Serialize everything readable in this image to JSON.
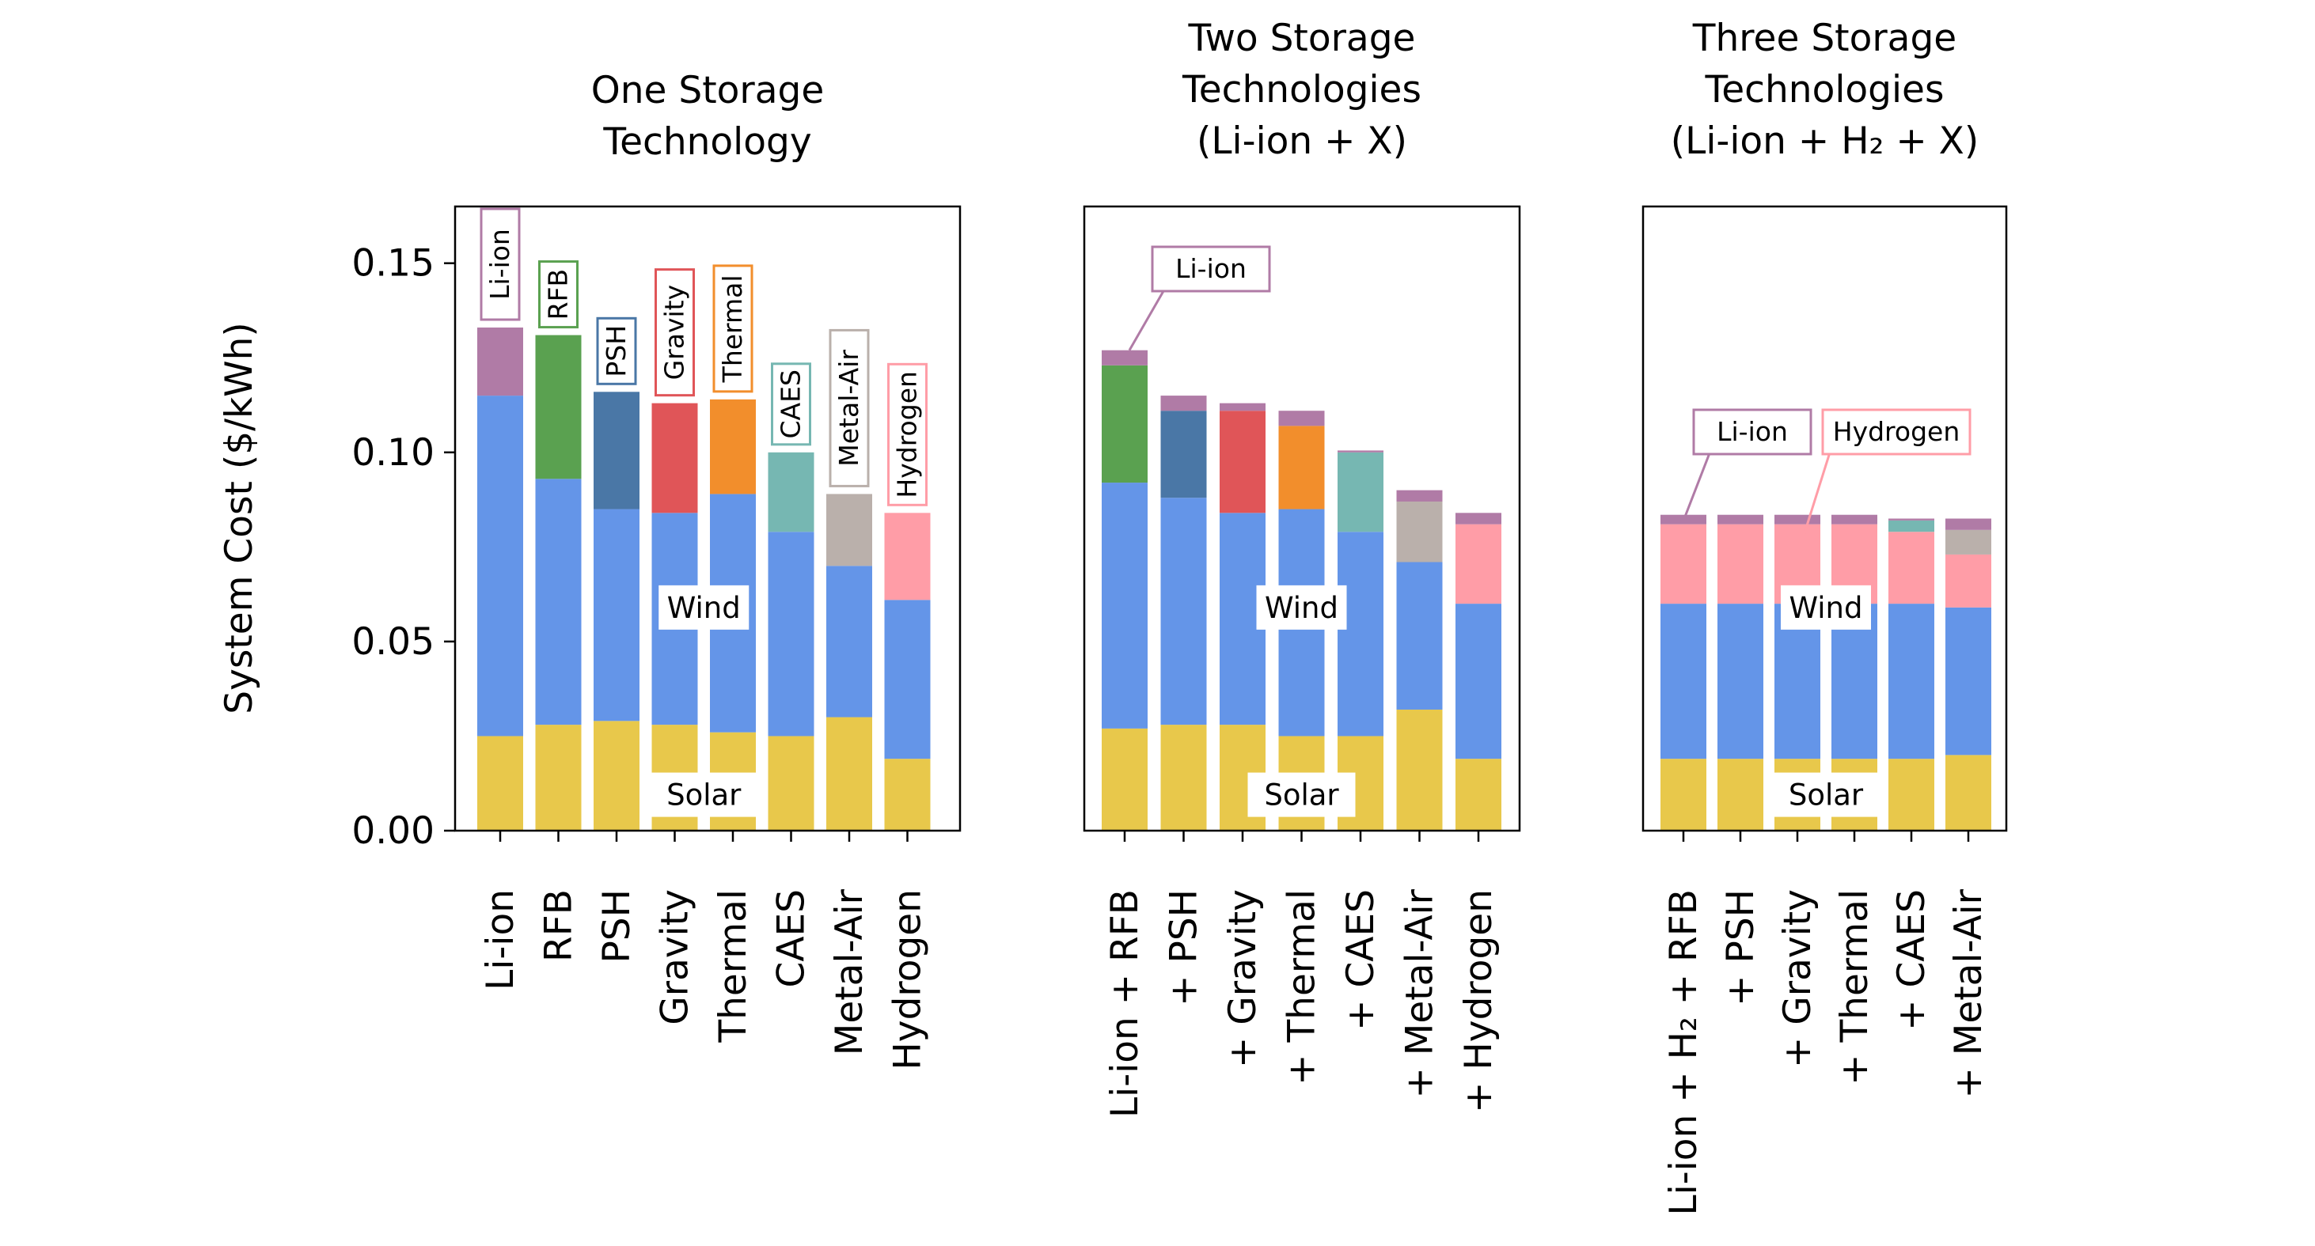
{
  "colors": {
    "Solar": "#E8C84B",
    "Wind": "#6495E8",
    "Li-ion": "#B07BA6",
    "RFB": "#5AA150",
    "PSH": "#4A77A6",
    "Gravity": "#E05558",
    "Thermal": "#F28E2C",
    "CAES": "#76B7B2",
    "Metal-Air": "#BAB0AB",
    "Hydrogen": "#FF9DA7"
  },
  "chart_data": [
    {
      "type": "bar",
      "stacked": true,
      "title": [
        "One Storage",
        "Technology"
      ],
      "ylabel": "System Cost ($/kWh)",
      "ylim": [
        0,
        0.165
      ],
      "yticks": [
        "0.00",
        "0.05",
        "0.10",
        "0.15"
      ],
      "categories": [
        "Li-ion",
        "RFB",
        "PSH",
        "Gravity",
        "Thermal",
        "CAES",
        "Metal-Air",
        "Hydrogen"
      ],
      "series": [
        {
          "name": "Solar",
          "values": [
            0.025,
            0.028,
            0.029,
            0.028,
            0.026,
            0.025,
            0.03,
            0.019
          ]
        },
        {
          "name": "Wind",
          "values": [
            0.09,
            0.065,
            0.056,
            0.056,
            0.063,
            0.054,
            0.04,
            0.042
          ]
        },
        {
          "name": "Li-ion",
          "values": [
            0.018,
            0,
            0,
            0,
            0,
            0,
            0,
            0
          ]
        },
        {
          "name": "RFB",
          "values": [
            0,
            0.038,
            0,
            0,
            0,
            0,
            0,
            0
          ]
        },
        {
          "name": "PSH",
          "values": [
            0,
            0,
            0.031,
            0,
            0,
            0,
            0,
            0
          ]
        },
        {
          "name": "Gravity",
          "values": [
            0,
            0,
            0,
            0.029,
            0,
            0,
            0,
            0
          ]
        },
        {
          "name": "Thermal",
          "values": [
            0,
            0,
            0,
            0,
            0.025,
            0,
            0,
            0
          ]
        },
        {
          "name": "CAES",
          "values": [
            0,
            0,
            0,
            0,
            0,
            0.021,
            0,
            0
          ]
        },
        {
          "name": "Metal-Air",
          "values": [
            0,
            0,
            0,
            0,
            0,
            0,
            0.019,
            0
          ]
        },
        {
          "name": "Hydrogen",
          "values": [
            0,
            0,
            0,
            0,
            0,
            0,
            0,
            0.023
          ]
        }
      ],
      "annotations": {
        "box_labels": [
          "Li-ion",
          "RFB",
          "PSH",
          "Gravity",
          "Thermal",
          "CAES",
          "Metal-Air",
          "Hydrogen"
        ],
        "wind_label": "Wind",
        "solar_label": "Solar"
      }
    },
    {
      "type": "bar",
      "stacked": true,
      "title": [
        "Two Storage",
        "Technologies",
        "(Li-ion + X)"
      ],
      "ylim": [
        0,
        0.165
      ],
      "categories": [
        [
          "Li-ion + RFB"
        ],
        [
          "+ PSH"
        ],
        [
          "+ Gravity"
        ],
        [
          "+ Thermal"
        ],
        [
          "+ CAES"
        ],
        [
          "+ Metal-Air"
        ],
        [
          "+ Hydrogen"
        ]
      ],
      "series": [
        {
          "name": "Solar",
          "values": [
            0.027,
            0.028,
            0.028,
            0.025,
            0.025,
            0.032,
            0.019
          ]
        },
        {
          "name": "Wind",
          "values": [
            0.065,
            0.06,
            0.056,
            0.06,
            0.054,
            0.039,
            0.041
          ]
        },
        {
          "name": "RFB",
          "values": [
            0.031,
            0,
            0,
            0,
            0,
            0,
            0
          ]
        },
        {
          "name": "PSH",
          "values": [
            0,
            0.023,
            0,
            0,
            0,
            0,
            0
          ]
        },
        {
          "name": "Gravity",
          "values": [
            0,
            0,
            0.027,
            0,
            0,
            0,
            0
          ]
        },
        {
          "name": "Thermal",
          "values": [
            0,
            0,
            0,
            0.022,
            0,
            0,
            0
          ]
        },
        {
          "name": "CAES",
          "values": [
            0,
            0,
            0,
            0,
            0.021,
            0,
            0
          ]
        },
        {
          "name": "Metal-Air",
          "values": [
            0,
            0,
            0,
            0,
            0,
            0.016,
            0
          ]
        },
        {
          "name": "Hydrogen",
          "values": [
            0,
            0,
            0,
            0,
            0,
            0,
            0.021
          ]
        },
        {
          "name": "Li-ion",
          "values": [
            0.004,
            0.004,
            0.002,
            0.004,
            0.0005,
            0.003,
            0.003
          ]
        }
      ],
      "annotations": {
        "callouts": [
          "Li-ion"
        ],
        "wind_label": "Wind",
        "solar_label": "Solar"
      }
    },
    {
      "type": "bar",
      "stacked": true,
      "title": [
        "Three Storage",
        "Technologies",
        "(Li-ion + H₂ + X)"
      ],
      "ylim": [
        0,
        0.165
      ],
      "categories": [
        [
          "Li-ion + H₂ + RFB"
        ],
        [
          "+ PSH"
        ],
        [
          "+ Gravity"
        ],
        [
          "+ Thermal"
        ],
        [
          "+ CAES"
        ],
        [
          "+ Metal-Air"
        ]
      ],
      "series": [
        {
          "name": "Solar",
          "values": [
            0.019,
            0.019,
            0.019,
            0.019,
            0.019,
            0.02
          ]
        },
        {
          "name": "Wind",
          "values": [
            0.041,
            0.041,
            0.041,
            0.041,
            0.041,
            0.039
          ]
        },
        {
          "name": "Hydrogen",
          "values": [
            0.021,
            0.021,
            0.021,
            0.021,
            0.019,
            0.014
          ]
        },
        {
          "name": "CAES",
          "values": [
            0,
            0,
            0,
            0,
            0.003,
            0
          ]
        },
        {
          "name": "Metal-Air",
          "values": [
            0,
            0,
            0,
            0,
            0,
            0.0065
          ]
        },
        {
          "name": "Li-ion",
          "values": [
            0.0025,
            0.0025,
            0.0025,
            0.0025,
            0.0005,
            0.003
          ]
        }
      ],
      "annotations": {
        "callouts": [
          "Li-ion",
          "Hydrogen"
        ],
        "wind_label": "Wind",
        "solar_label": "Solar"
      }
    }
  ]
}
